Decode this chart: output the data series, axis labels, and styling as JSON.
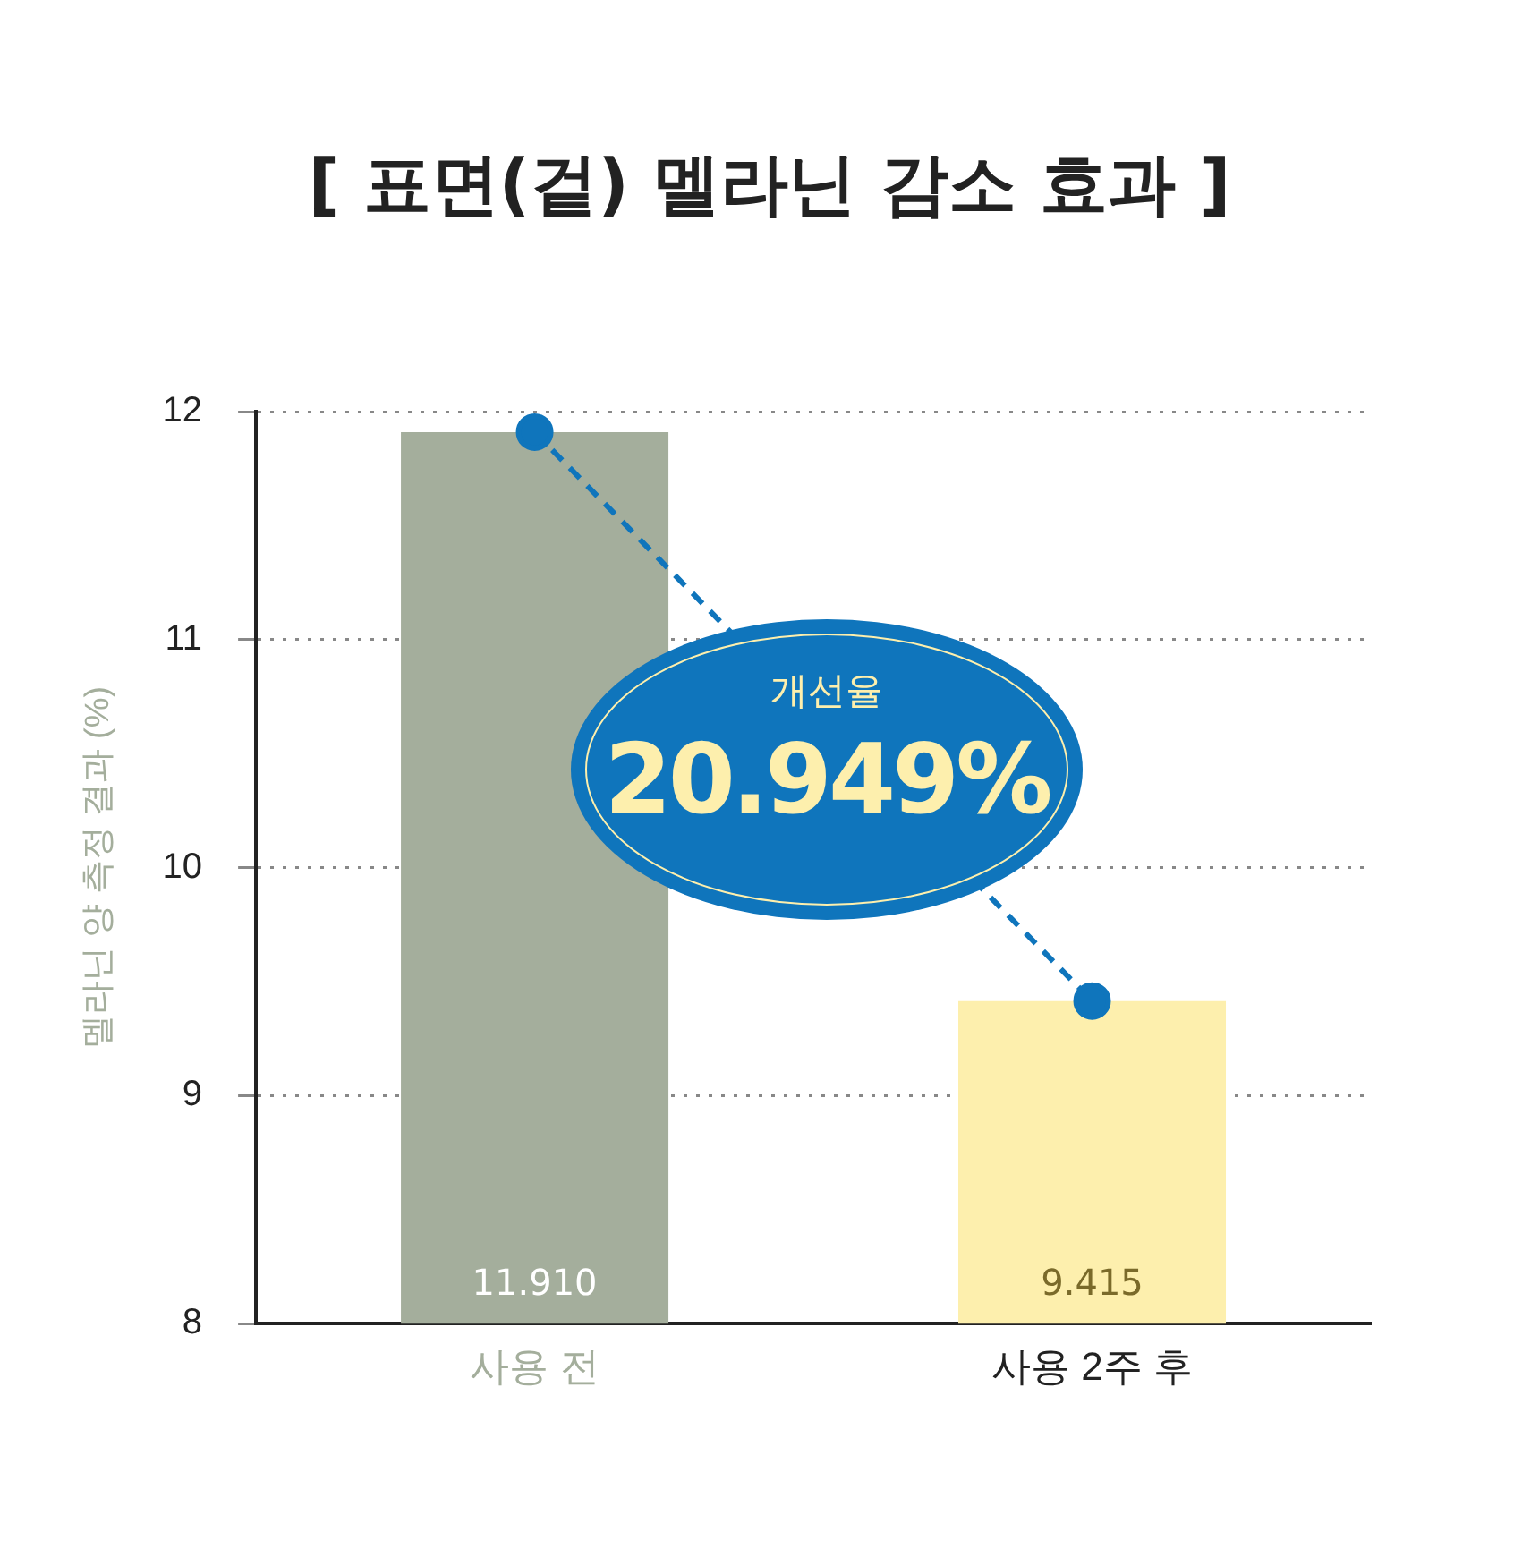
{
  "chart_data": {
    "type": "bar",
    "title": "[ 표면(겉) 멜라닌 감소 효과 ]",
    "ylabel": "멜라닌 양 측정 결과 (%)",
    "categories": [
      "사용 전",
      "사용 2주 후"
    ],
    "series": [
      {
        "colors": [
          "#a4ae9c",
          "#fdefad"
        ],
        "values": [
          11.91,
          9.415
        ],
        "value_labels": [
          "11.910",
          "9.415"
        ]
      },
      {
        "type": "line",
        "color": "#0f75bc",
        "values": [
          11.91,
          9.415
        ],
        "marker": "circle",
        "line_style": "dashed"
      }
    ],
    "ylim": [
      8,
      12
    ],
    "yticks": [
      8,
      9,
      10,
      11,
      12
    ],
    "grid": "y",
    "annotations": [
      "개선율",
      "20.949%"
    ]
  }
}
